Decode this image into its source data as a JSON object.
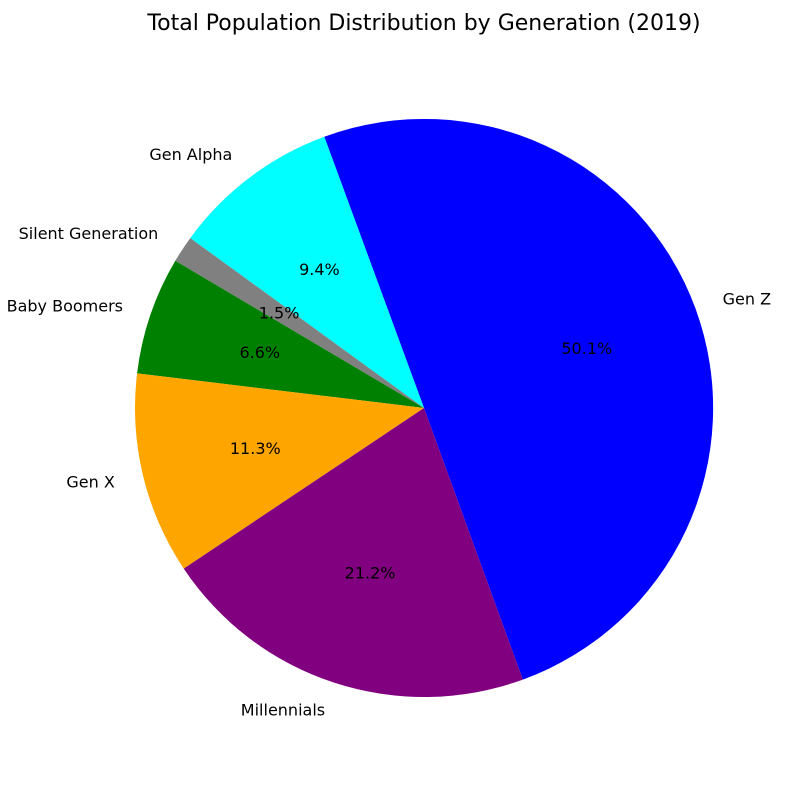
{
  "chart_data": {
    "type": "pie",
    "title": "Total Population Distribution by Generation (2019)",
    "start_angle_deg": 290,
    "direction": "counterclockwise",
    "slices": [
      {
        "label": "Gen Z",
        "value": 50.1,
        "pct_label": "50.1%",
        "color": "#0000ff"
      },
      {
        "label": "Gen Alpha",
        "value": 9.4,
        "pct_label": "9.4%",
        "color": "#00ffff"
      },
      {
        "label": "Silent Generation",
        "value": 1.5,
        "pct_label": "1.5%",
        "color": "#808080"
      },
      {
        "label": "Baby Boomers",
        "value": 6.6,
        "pct_label": "6.6%",
        "color": "#008000"
      },
      {
        "label": "Gen X",
        "value": 11.3,
        "pct_label": "11.3%",
        "color": "#ffa500"
      },
      {
        "label": "Millennials",
        "value": 21.2,
        "pct_label": "21.2%",
        "color": "#800080"
      }
    ]
  }
}
